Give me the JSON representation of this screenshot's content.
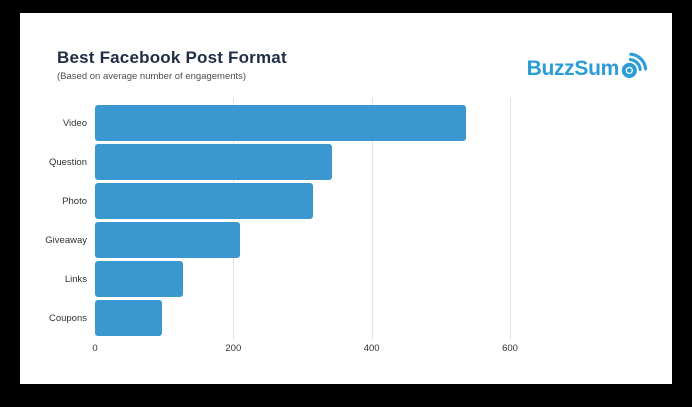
{
  "header": {
    "title": "Best Facebook Post Format",
    "subtitle": "(Based on average number of engagements)"
  },
  "logo": {
    "brand": "BuzzSumo",
    "color": "#2b9cd8"
  },
  "chart_data": {
    "type": "bar",
    "orientation": "horizontal",
    "title": "Best Facebook Post Format",
    "subtitle": "(Based on average number of engagements)",
    "categories": [
      "Video",
      "Question",
      "Photo",
      "Giveaway",
      "Links",
      "Coupons"
    ],
    "values": [
      537,
      342,
      315,
      209,
      127,
      97
    ],
    "x_ticks": [
      0,
      200,
      400,
      600
    ],
    "xlim": [
      0,
      800
    ],
    "xlabel": "",
    "ylabel": "",
    "grid": true,
    "legend": false,
    "bar_color": "#3b97d0",
    "gridline_color": "#e3e3e3",
    "title_color": "#1f2d45",
    "text_color": "#333333",
    "background_color": "#ffffff",
    "frame_color": "#000000"
  }
}
